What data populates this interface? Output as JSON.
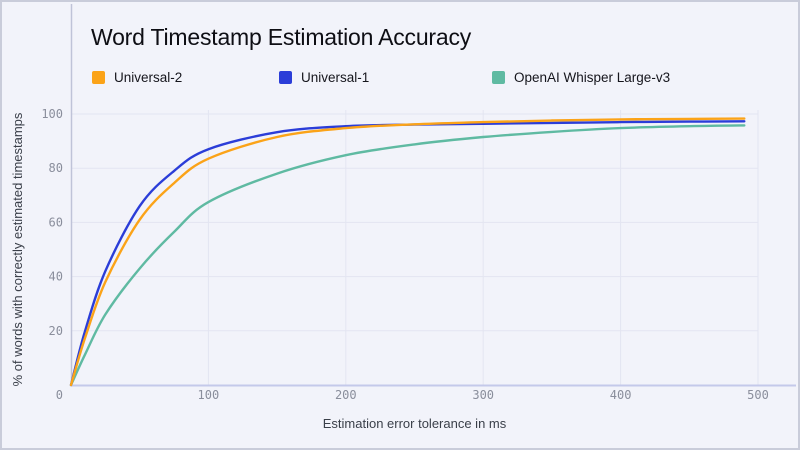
{
  "title": "Word Timestamp Estimation Accuracy",
  "colors": {
    "card_background": "#F2F3FA",
    "card_border": "#C9CCDA",
    "gridline": "#E3E5F1",
    "x_axis_line": "#C4C9EA",
    "y_axis_line": "#BFC3D8",
    "tick_text": "#8A8E9C",
    "axis_label_text": "#3A3F49",
    "title_text": "#0E0E14"
  },
  "chart_data": {
    "type": "line",
    "title": "Word Timestamp Estimation Accuracy",
    "xlabel": "Estimation error tolerance in ms",
    "ylabel": "% of words with correctly estimated timestamps",
    "xlim": [
      0,
      500
    ],
    "ylim": [
      0,
      100
    ],
    "x_ticks": [
      100,
      200,
      300,
      400,
      500
    ],
    "y_ticks": [
      20,
      40,
      60,
      80,
      100
    ],
    "origin_tick_label": "0",
    "grid": true,
    "legend_position": "top",
    "x": [
      0,
      10,
      25,
      50,
      75,
      100,
      150,
      200,
      250,
      300,
      350,
      400,
      450,
      490
    ],
    "series": [
      {
        "name": "Universal-2",
        "color": "#FBA318",
        "values": [
          0,
          17,
          38,
          61,
          74.5,
          83.5,
          91.5,
          94.8,
          96.2,
          97.0,
          97.6,
          98.0,
          98.2,
          98.3
        ]
      },
      {
        "name": "Universal-1",
        "color": "#2B3DD8",
        "values": [
          0,
          19.5,
          42,
          66,
          79,
          87,
          93.3,
          95.5,
          96.1,
          96.4,
          96.7,
          97.0,
          97.2,
          97.3
        ]
      },
      {
        "name": "OpenAI Whisper Large-v3",
        "color": "#5FBAA2",
        "values": [
          0,
          11,
          26,
          43,
          56.5,
          67.5,
          78,
          84.8,
          88.8,
          91.5,
          93.4,
          94.8,
          95.5,
          95.8
        ]
      }
    ]
  }
}
